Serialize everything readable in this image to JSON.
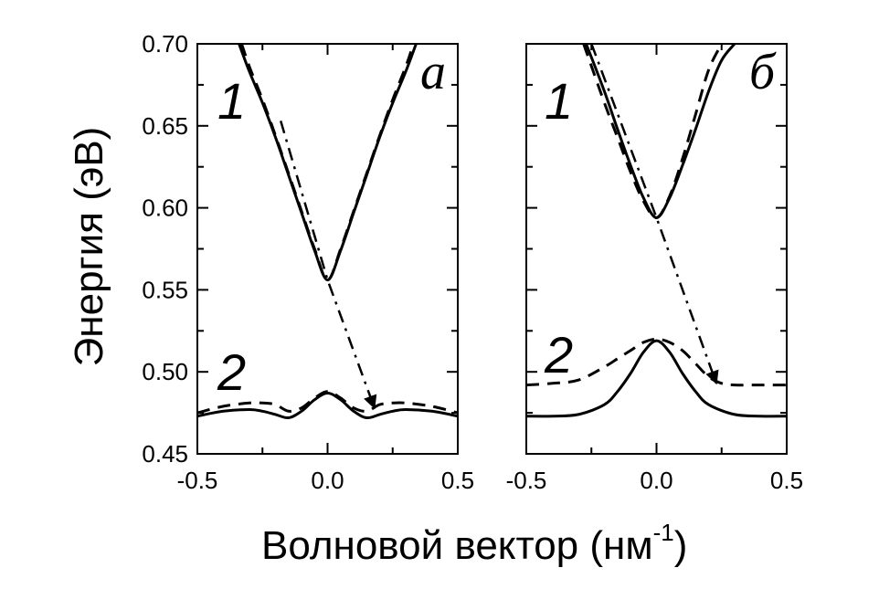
{
  "chart_data": {
    "type": "line",
    "ylabel": "Энергия (эВ)",
    "xlabel": {
      "main": "Волновой вектор (нм",
      "sup": "-1",
      "close": ")"
    },
    "ylim": [
      0.45,
      0.7
    ],
    "yticks": [
      "0.45",
      "0.50",
      "0.55",
      "0.60",
      "0.65",
      "0.70"
    ],
    "xlim": [
      -0.5,
      0.5
    ],
    "xticks": [
      "-0.5",
      "0.0",
      "0.5"
    ],
    "grid": false,
    "panels": [
      {
        "label": "a",
        "curve_labels": [
          "1",
          "2"
        ],
        "series": [
          {
            "style": "solid",
            "x": [
              -0.34,
              -0.3,
              -0.25,
              -0.2,
              -0.15,
              -0.1,
              -0.05,
              0.0,
              0.05,
              0.1,
              0.15,
              0.2,
              0.25,
              0.3,
              0.34
            ],
            "y": [
              0.7,
              0.683,
              0.664,
              0.643,
              0.62,
              0.597,
              0.574,
              0.556,
              0.574,
              0.597,
              0.62,
              0.643,
              0.664,
              0.683,
              0.7
            ]
          },
          {
            "style": "dashed",
            "x": [
              -0.33,
              -0.3,
              -0.25,
              -0.2,
              -0.15,
              -0.1,
              -0.05,
              0.0,
              0.05,
              0.1,
              0.15,
              0.2,
              0.25,
              0.3,
              0.33
            ],
            "y": [
              0.7,
              0.686,
              0.666,
              0.644,
              0.621,
              0.598,
              0.575,
              0.556,
              0.575,
              0.598,
              0.621,
              0.644,
              0.666,
              0.686,
              0.7
            ]
          },
          {
            "style": "solid",
            "x": [
              -0.5,
              -0.4,
              -0.3,
              -0.25,
              -0.2,
              -0.15,
              -0.1,
              -0.05,
              0.0,
              0.05,
              0.1,
              0.15,
              0.2,
              0.25,
              0.3,
              0.4,
              0.5
            ],
            "y": [
              0.473,
              0.476,
              0.477,
              0.476,
              0.474,
              0.472,
              0.476,
              0.483,
              0.487,
              0.483,
              0.476,
              0.472,
              0.474,
              0.476,
              0.477,
              0.476,
              0.473
            ]
          },
          {
            "style": "dashed",
            "x": [
              -0.5,
              -0.4,
              -0.3,
              -0.25,
              -0.2,
              -0.15,
              -0.1,
              -0.05,
              0.0,
              0.05,
              0.1,
              0.15,
              0.2,
              0.25,
              0.3,
              0.4,
              0.5
            ],
            "y": [
              0.475,
              0.479,
              0.481,
              0.481,
              0.48,
              0.476,
              0.478,
              0.484,
              0.488,
              0.484,
              0.478,
              0.476,
              0.48,
              0.481,
              0.481,
              0.479,
              0.475
            ]
          },
          {
            "style": "dashdot",
            "arrow": true,
            "x": [
              -0.18,
              0.0,
              0.18
            ],
            "y": [
              0.653,
              0.556,
              0.478
            ]
          }
        ]
      },
      {
        "label": "б",
        "curve_labels": [
          "1",
          "2"
        ],
        "series": [
          {
            "style": "solid",
            "x": [
              -0.27,
              -0.2,
              -0.15,
              -0.1,
              -0.05,
              0.0,
              0.05,
              0.1,
              0.15,
              0.2,
              0.25,
              0.3
            ],
            "y": [
              0.7,
              0.671,
              0.648,
              0.626,
              0.606,
              0.594,
              0.606,
              0.626,
              0.648,
              0.671,
              0.69,
              0.7
            ]
          },
          {
            "style": "dashed",
            "x": [
              -0.28,
              -0.2,
              -0.15,
              -0.1,
              -0.05,
              0.0,
              0.05,
              0.1,
              0.15,
              0.2,
              0.25
            ],
            "y": [
              0.7,
              0.664,
              0.643,
              0.622,
              0.604,
              0.594,
              0.607,
              0.63,
              0.657,
              0.684,
              0.7
            ]
          },
          {
            "style": "solid",
            "x": [
              -0.5,
              -0.4,
              -0.3,
              -0.2,
              -0.15,
              -0.1,
              -0.05,
              0.0,
              0.05,
              0.1,
              0.15,
              0.2,
              0.3,
              0.4,
              0.5
            ],
            "y": [
              0.473,
              0.473,
              0.474,
              0.48,
              0.488,
              0.499,
              0.512,
              0.519,
              0.512,
              0.499,
              0.488,
              0.48,
              0.474,
              0.473,
              0.473
            ]
          },
          {
            "style": "dashed",
            "x": [
              -0.5,
              -0.4,
              -0.3,
              -0.2,
              -0.15,
              -0.1,
              -0.05,
              0.0,
              0.05,
              0.1,
              0.15,
              0.2,
              0.25,
              0.3,
              0.4,
              0.5
            ],
            "y": [
              0.492,
              0.493,
              0.495,
              0.503,
              0.508,
              0.513,
              0.518,
              0.52,
              0.518,
              0.513,
              0.505,
              0.497,
              0.493,
              0.492,
              0.492,
              0.492
            ]
          },
          {
            "style": "dashdot",
            "arrow": true,
            "x": [
              -0.25,
              0.0,
              0.23
            ],
            "y": [
              0.7,
              0.594,
              0.493
            ]
          }
        ]
      }
    ]
  }
}
